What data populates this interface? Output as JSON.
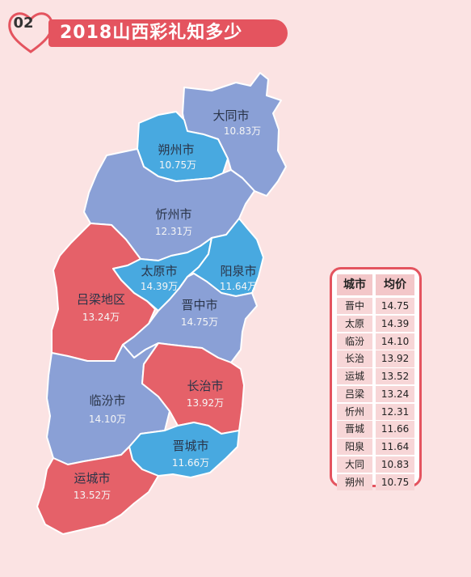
{
  "header": {
    "number": "02",
    "title": "2018山西彩礼知多少"
  },
  "colors": {
    "background": "#fbe3e3",
    "accent_red": "#e4545f",
    "region_red": "#e56169",
    "region_blue": "#48a9e0",
    "region_slate": "#8aa0d6",
    "border": "#ffffff"
  },
  "regions": {
    "datong": {
      "name": "大同市",
      "value": "10.83万"
    },
    "shuozhou": {
      "name": "朔州市",
      "value": "10.75万"
    },
    "xinzhou": {
      "name": "忻州市",
      "value": "12.31万"
    },
    "taiyuan": {
      "name": "太原市",
      "value": "14.39万"
    },
    "yangquan": {
      "name": "阳泉市",
      "value": "11.64万"
    },
    "lvliang": {
      "name": "吕梁地区",
      "value": "13.24万"
    },
    "jinzhong": {
      "name": "晋中市",
      "value": "14.75万"
    },
    "changzhi": {
      "name": "长治市",
      "value": "13.92万"
    },
    "linfen": {
      "name": "临汾市",
      "value": "14.10万"
    },
    "jincheng": {
      "name": "晋城市",
      "value": "11.66万"
    },
    "yuncheng": {
      "name": "运城市",
      "value": "13.52万"
    }
  },
  "table": {
    "col_city": "城市",
    "col_price": "均价",
    "rows": [
      {
        "city": "晋中",
        "price": "14.75"
      },
      {
        "city": "太原",
        "price": "14.39"
      },
      {
        "city": "临汾",
        "price": "14.10"
      },
      {
        "city": "长治",
        "price": "13.92"
      },
      {
        "city": "运城",
        "price": "13.52"
      },
      {
        "city": "吕梁",
        "price": "13.24"
      },
      {
        "city": "忻州",
        "price": "12.31"
      },
      {
        "city": "晋城",
        "price": "11.66"
      },
      {
        "city": "阳泉",
        "price": "11.64"
      },
      {
        "city": "大同",
        "price": "10.83"
      },
      {
        "city": "朔州",
        "price": "10.75"
      }
    ]
  }
}
